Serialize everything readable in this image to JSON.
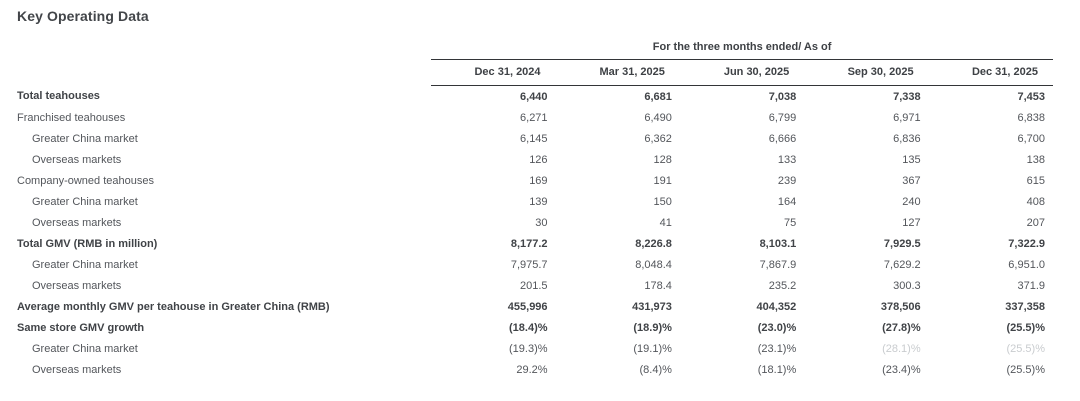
{
  "page": {
    "title": "Key Operating Data"
  },
  "colors": {
    "background": "#ffffff",
    "heading_text": "#424549",
    "body_text": "#53565b",
    "bold_text": "#404347",
    "rule": "#333538",
    "faded_text": "#c9cccf"
  },
  "table": {
    "period_header": "For the three months ended/ As of",
    "columns": [
      "Dec 31, 2024",
      "Mar 31, 2025",
      "Jun 30, 2025",
      "Sep 30, 2025",
      "Dec 31, 2025"
    ],
    "rows": [
      {
        "label": "Total teahouses",
        "bold": true,
        "indent": 0,
        "values": [
          "6,440",
          "6,681",
          "7,038",
          "7,338",
          "7,453"
        ]
      },
      {
        "label": "Franchised teahouses",
        "bold": false,
        "indent": 0,
        "values": [
          "6,271",
          "6,490",
          "6,799",
          "6,971",
          "6,838"
        ]
      },
      {
        "label": "Greater China market",
        "bold": false,
        "indent": 1,
        "values": [
          "6,145",
          "6,362",
          "6,666",
          "6,836",
          "6,700"
        ]
      },
      {
        "label": "Overseas markets",
        "bold": false,
        "indent": 1,
        "values": [
          "126",
          "128",
          "133",
          "135",
          "138"
        ]
      },
      {
        "label": "Company-owned teahouses",
        "bold": false,
        "indent": 0,
        "values": [
          "169",
          "191",
          "239",
          "367",
          "615"
        ]
      },
      {
        "label": "Greater China market",
        "bold": false,
        "indent": 1,
        "values": [
          "139",
          "150",
          "164",
          "240",
          "408"
        ]
      },
      {
        "label": "Overseas markets",
        "bold": false,
        "indent": 1,
        "values": [
          "30",
          "41",
          "75",
          "127",
          "207"
        ]
      },
      {
        "label": "Total GMV (RMB in million)",
        "bold": true,
        "indent": 0,
        "values": [
          "8,177.2",
          "8,226.8",
          "8,103.1",
          "7,929.5",
          "7,322.9"
        ]
      },
      {
        "label": "Greater China market",
        "bold": false,
        "indent": 1,
        "values": [
          "7,975.7",
          "8,048.4",
          "7,867.9",
          "7,629.2",
          "6,951.0"
        ]
      },
      {
        "label": "Overseas markets",
        "bold": false,
        "indent": 1,
        "values": [
          "201.5",
          "178.4",
          "235.2",
          "300.3",
          "371.9"
        ]
      },
      {
        "label": "Average monthly GMV per teahouse in Greater China (RMB)",
        "bold": true,
        "indent": 0,
        "values": [
          "455,996",
          "431,973",
          "404,352",
          "378,506",
          "337,358"
        ]
      },
      {
        "label": "Same store GMV growth",
        "bold": true,
        "indent": 0,
        "values": [
          "(18.4)%",
          "(18.9)%",
          "(23.0)%",
          "(27.8)%",
          "(25.5)%"
        ]
      },
      {
        "label": "Greater China market",
        "bold": false,
        "indent": 1,
        "values": [
          "(19.3)%",
          "(19.1)%",
          "(23.1)%",
          "(28.1)%",
          "(25.5)%"
        ],
        "faded_cells": [
          3,
          4
        ]
      },
      {
        "label": "Overseas markets",
        "bold": false,
        "indent": 1,
        "values": [
          "29.2%",
          "(8.4)%",
          "(18.1)%",
          "(23.4)%",
          "(25.5)%"
        ]
      }
    ]
  }
}
